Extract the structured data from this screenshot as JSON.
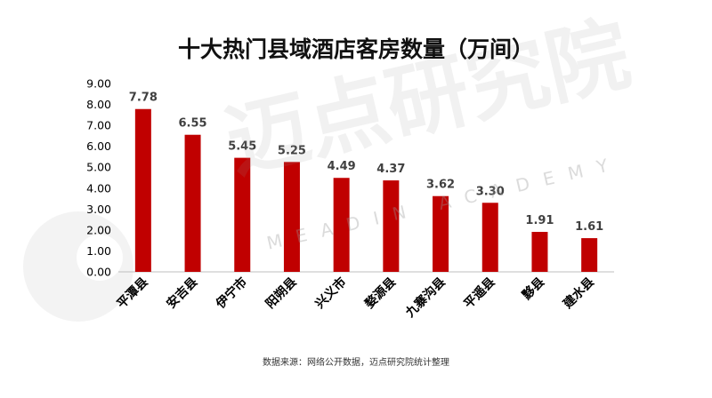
{
  "page": {
    "title": "十大热门县域酒店客房数量（万间）",
    "source": "数据来源：网络公开数据，迈点研究院统计整理",
    "watermark_text": "迈点研究院",
    "watermark_sub": "MEADIN ACADEMY"
  },
  "colors": {
    "bar": "#c00000",
    "axis_text": "#000000",
    "value_label": "#404040",
    "watermark": "#9a9a9a"
  },
  "chart_data": {
    "type": "bar",
    "title": "十大热门县域酒店客房数量（万间）",
    "xlabel": "",
    "ylabel": "",
    "categories": [
      "平潭县",
      "安吉县",
      "伊宁市",
      "阳朔县",
      "兴义市",
      "婺源县",
      "九寨沟县",
      "平遥县",
      "黟县",
      "建水县"
    ],
    "values": [
      7.78,
      6.55,
      5.45,
      5.25,
      4.49,
      4.37,
      3.62,
      3.3,
      1.91,
      1.61
    ],
    "value_labels": [
      "7.78",
      "6.55",
      "5.45",
      "5.25",
      "4.49",
      "4.37",
      "3.62",
      "3.30",
      "1.91",
      "1.61"
    ],
    "ylim": [
      0,
      9
    ],
    "yticks": [
      "0.00",
      "1.00",
      "2.00",
      "3.00",
      "4.00",
      "5.00",
      "6.00",
      "7.00",
      "8.00",
      "9.00"
    ],
    "grid": false,
    "legend": "none"
  }
}
